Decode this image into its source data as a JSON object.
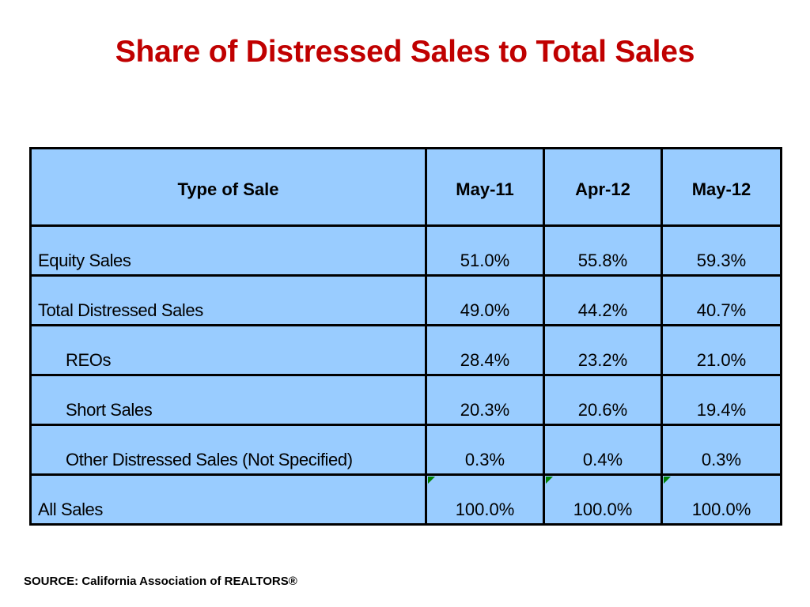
{
  "title": "Share of Distressed Sales to Total Sales",
  "table": {
    "headers": [
      "Type of Sale",
      "May-11",
      "Apr-12",
      "May-12"
    ],
    "rows": [
      {
        "label": "Equity Sales",
        "values": [
          "51.0%",
          "55.8%",
          "59.3%"
        ]
      },
      {
        "label": "Total Distressed Sales",
        "values": [
          "49.0%",
          "44.2%",
          "40.7%"
        ]
      },
      {
        "label": "REOs",
        "values": [
          "28.4%",
          "23.2%",
          "21.0%"
        ]
      },
      {
        "label": "Short Sales",
        "values": [
          "20.3%",
          "20.6%",
          "19.4%"
        ]
      },
      {
        "label": "Other Distressed Sales (Not Specified)",
        "values": [
          "0.3%",
          "0.4%",
          "0.3%"
        ]
      },
      {
        "label": "All Sales",
        "values": [
          "100.0%",
          "100.0%",
          "100.0%"
        ]
      }
    ]
  },
  "colors": {
    "title": "#c00000",
    "cell_background": "#99ccff",
    "border": "#000000",
    "error_flag": "#008000"
  },
  "source": "SOURCE: California Association of REALTORS®"
}
